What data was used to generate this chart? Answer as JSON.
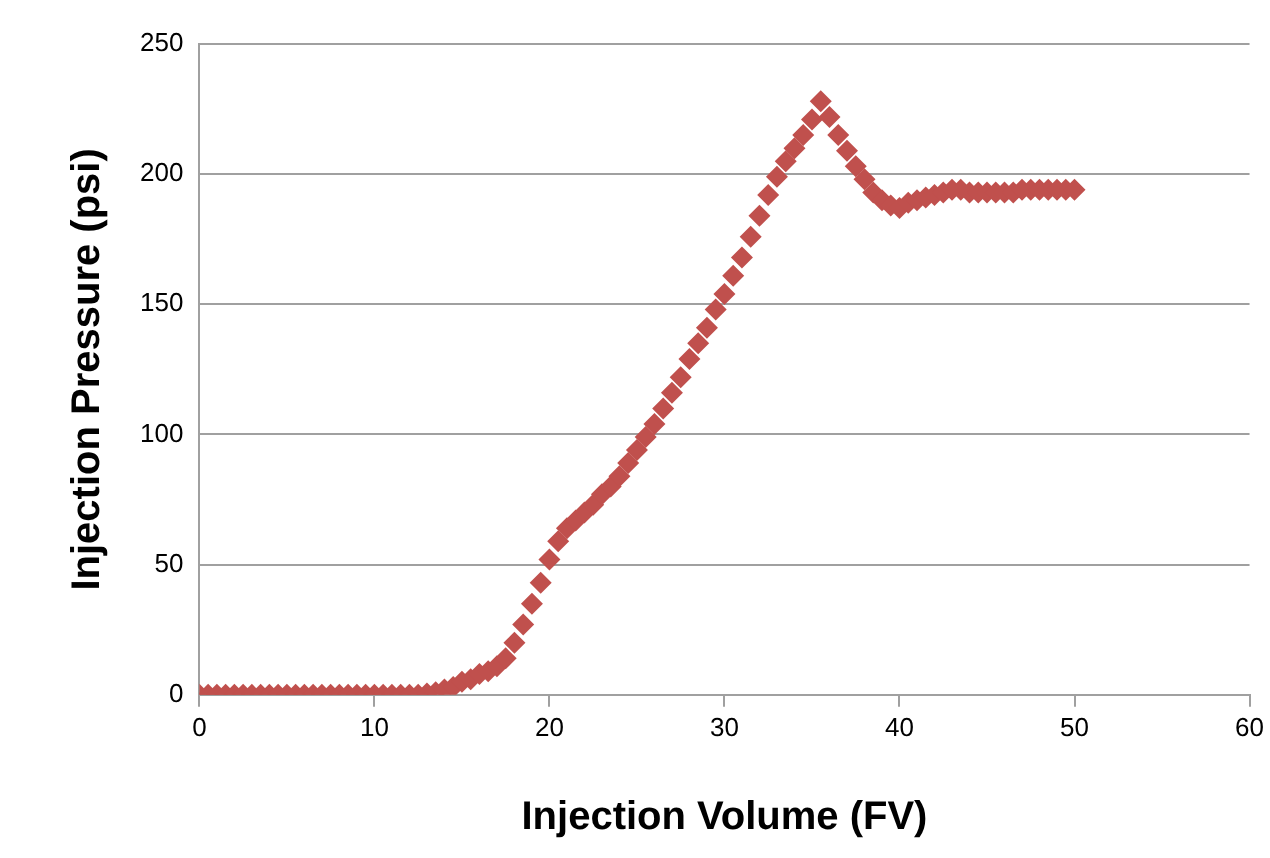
{
  "chart_data": {
    "type": "scatter",
    "xlabel": "Injection Volume (FV)",
    "ylabel": "Injection Pressure (psi)",
    "xlim": [
      0,
      60
    ],
    "xticks": [
      0,
      10,
      20,
      30,
      40,
      50,
      60
    ],
    "ylim": [
      0,
      250
    ],
    "yticks": [
      0,
      50,
      100,
      150,
      200,
      250
    ],
    "grid": "y",
    "legend": false,
    "marker": "diamond",
    "series": [
      {
        "color": "#c0504d",
        "x": [
          0,
          0.5,
          1,
          1.5,
          2,
          2.5,
          3,
          3.5,
          4,
          4.5,
          5,
          5.5,
          6,
          6.5,
          7,
          7.5,
          8,
          8.5,
          9,
          9.5,
          10,
          10.5,
          11,
          11.5,
          12,
          12.5,
          13,
          13.5,
          14,
          14.5,
          15,
          15.5,
          16,
          16.5,
          17,
          17.5,
          18,
          18.5,
          19,
          19.5,
          20,
          20.5,
          21,
          21.5,
          22,
          22.5,
          23,
          23.5,
          24,
          24.5,
          25,
          25.5,
          26,
          26.5,
          27,
          27.5,
          28,
          28.5,
          29,
          29.5,
          30,
          30.5,
          31,
          31.5,
          32,
          32.5,
          33,
          33.5,
          34,
          34.5,
          35,
          35.5,
          36,
          36.5,
          37,
          37.5,
          38,
          38.5,
          39,
          39.5,
          40,
          40.5,
          41,
          41.5,
          42,
          42.5,
          43,
          43.5,
          44,
          44.5,
          45,
          45.5,
          46,
          46.5,
          47,
          47.5,
          48,
          48.5,
          49,
          49.5,
          50
        ],
        "values": [
          0,
          0,
          0,
          0,
          0,
          0,
          0,
          0,
          0,
          0,
          0,
          0,
          0,
          0,
          0,
          0,
          0,
          0,
          0,
          0,
          0,
          0,
          0,
          0,
          0,
          0,
          0.5,
          1,
          2,
          3,
          5,
          6,
          8,
          9,
          11,
          14,
          20,
          27,
          35,
          43,
          52,
          59,
          64,
          67,
          70,
          73,
          77,
          80,
          84,
          89,
          94,
          99,
          104,
          110,
          116,
          122,
          129,
          135,
          141,
          148,
          154,
          161,
          168,
          176,
          184,
          192,
          199,
          205,
          210,
          215,
          221,
          228,
          222,
          215,
          209,
          203,
          198,
          193,
          190,
          188,
          187,
          189,
          190,
          191,
          192,
          193,
          194,
          194,
          193,
          193,
          193,
          193,
          193,
          193,
          194,
          194,
          194,
          194,
          194,
          194,
          194
        ]
      }
    ]
  }
}
